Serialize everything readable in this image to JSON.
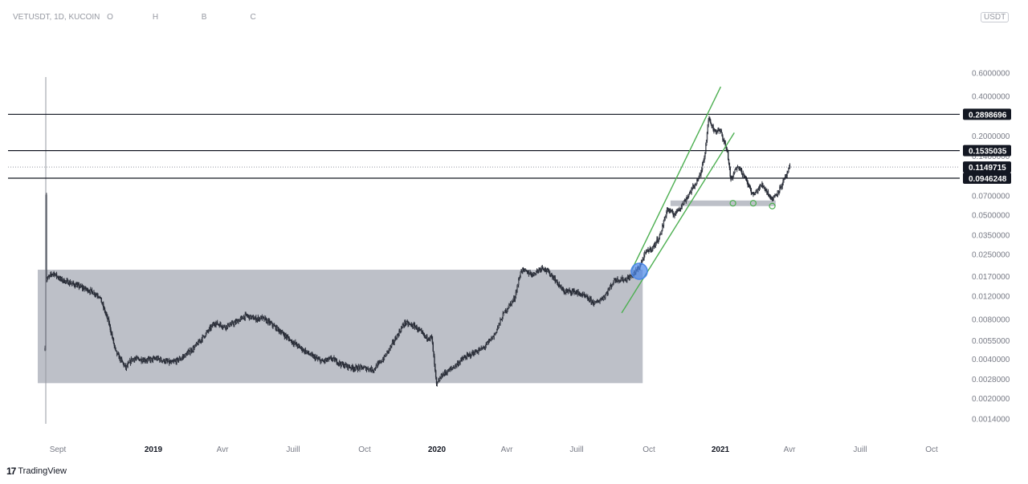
{
  "header": {
    "symbol": "VETUSDT, 1D, KUCOIN",
    "o_label": "O",
    "h_label": "H",
    "b_label": "B",
    "c_label": "C"
  },
  "unit_badge": "USDT",
  "brand": {
    "logo": "17",
    "name": "TradingView"
  },
  "chart_data": {
    "type": "candlestick",
    "scale": "log",
    "y_ticks": [
      "0.6000000",
      "0.4000000",
      "0.2000000",
      "0.1400000",
      "0.0700000",
      "0.0500000",
      "0.0350000",
      "0.0250000",
      "0.0170000",
      "0.0120000",
      "0.0080000",
      "0.0055000",
      "0.0040000",
      "0.0028000",
      "0.0020000",
      "0.0014000"
    ],
    "x_ticks": [
      "Sept",
      "2019",
      "Avr",
      "Juill",
      "Oct",
      "2020",
      "Avr",
      "Juill",
      "Oct",
      "2021",
      "Avr",
      "Juill",
      "Oct"
    ],
    "ylim": [
      0.0012,
      0.6
    ],
    "horizontal_levels": [
      {
        "value": 0.2898696,
        "label": "0.2898696"
      },
      {
        "value": 0.1535035,
        "label": "0.1535035"
      },
      {
        "value": 0.0946248,
        "label": "0.0946248"
      }
    ],
    "last_price": {
      "value": 0.1149715,
      "label": "0.1149715"
    },
    "range_box": {
      "start": "2018-08-14",
      "end": "2021-01-10",
      "low": 0.0026,
      "high": 0.019,
      "color": "#b2b5be"
    },
    "support_box": {
      "start": "2021-02-20",
      "end": "2021-07-25",
      "low": 0.058,
      "high": 0.064,
      "color": "#b2b5be"
    },
    "channel": {
      "color": "#4caf50",
      "upper": [
        {
          "t": "2020-12-25",
          "p": 0.019
        },
        {
          "t": "2021-05-05",
          "p": 0.47
        }
      ],
      "lower": [
        {
          "t": "2020-12-10",
          "p": 0.0089
        },
        {
          "t": "2021-05-25",
          "p": 0.21
        }
      ]
    },
    "marker": {
      "t": "2021-01-05",
      "p": 0.0185,
      "color": "#4a86e8"
    },
    "support_touches": [
      {
        "t": "2021-05-23",
        "p": 0.061
      },
      {
        "t": "2021-06-22",
        "p": 0.061
      },
      {
        "t": "2021-07-20",
        "p": 0.058
      }
    ],
    "series_anchors": [
      [
        "2018-08-13",
        0.0048
      ],
      [
        "2018-08-14",
        0.072
      ],
      [
        "2018-08-15",
        0.016
      ],
      [
        "2018-08-25",
        0.018
      ],
      [
        "2018-09-05",
        0.016
      ],
      [
        "2018-09-20",
        0.015
      ],
      [
        "2018-10-05",
        0.014
      ],
      [
        "2018-10-20",
        0.013
      ],
      [
        "2018-11-01",
        0.012
      ],
      [
        "2018-11-15",
        0.0075
      ],
      [
        "2018-11-25",
        0.0045
      ],
      [
        "2018-12-10",
        0.0034
      ],
      [
        "2018-12-20",
        0.004
      ],
      [
        "2019-01-10",
        0.0039
      ],
      [
        "2019-01-25",
        0.004
      ],
      [
        "2019-02-15",
        0.0037
      ],
      [
        "2019-03-01",
        0.004
      ],
      [
        "2019-03-20",
        0.0048
      ],
      [
        "2019-04-05",
        0.006
      ],
      [
        "2019-04-20",
        0.0075
      ],
      [
        "2019-05-05",
        0.007
      ],
      [
        "2019-05-20",
        0.0075
      ],
      [
        "2019-06-05",
        0.0085
      ],
      [
        "2019-06-20",
        0.008
      ],
      [
        "2019-06-28",
        0.0082
      ],
      [
        "2019-07-10",
        0.0075
      ],
      [
        "2019-07-25",
        0.0065
      ],
      [
        "2019-08-10",
        0.0055
      ],
      [
        "2019-08-25",
        0.0048
      ],
      [
        "2019-09-10",
        0.0042
      ],
      [
        "2019-09-25",
        0.0038
      ],
      [
        "2019-10-10",
        0.004
      ],
      [
        "2019-10-25",
        0.0036
      ],
      [
        "2019-11-10",
        0.0034
      ],
      [
        "2019-11-25",
        0.0034
      ],
      [
        "2019-12-10",
        0.0033
      ],
      [
        "2019-12-25",
        0.004
      ],
      [
        "2020-01-10",
        0.0055
      ],
      [
        "2020-01-25",
        0.0075
      ],
      [
        "2020-02-10",
        0.007
      ],
      [
        "2020-02-25",
        0.0058
      ],
      [
        "2020-03-05",
        0.0058
      ],
      [
        "2020-03-12",
        0.0025
      ],
      [
        "2020-03-20",
        0.003
      ],
      [
        "2020-04-05",
        0.0034
      ],
      [
        "2020-04-20",
        0.004
      ],
      [
        "2020-05-05",
        0.0044
      ],
      [
        "2020-05-20",
        0.0048
      ],
      [
        "2020-06-05",
        0.006
      ],
      [
        "2020-06-20",
        0.009
      ],
      [
        "2020-07-05",
        0.0115
      ],
      [
        "2020-07-15",
        0.019
      ],
      [
        "2020-08-01",
        0.0175
      ],
      [
        "2020-08-15",
        0.02
      ],
      [
        "2020-08-30",
        0.017
      ],
      [
        "2020-09-15",
        0.013
      ],
      [
        "2020-10-01",
        0.013
      ],
      [
        "2020-10-15",
        0.012
      ],
      [
        "2020-11-01",
        0.0105
      ],
      [
        "2020-11-15",
        0.012
      ],
      [
        "2020-11-30",
        0.016
      ],
      [
        "2020-12-15",
        0.016
      ],
      [
        "2020-12-25",
        0.017
      ],
      [
        "2021-01-05",
        0.02
      ],
      [
        "2021-01-15",
        0.026
      ],
      [
        "2021-01-25",
        0.028
      ],
      [
        "2021-02-05",
        0.035
      ],
      [
        "2021-02-15",
        0.055
      ],
      [
        "2021-02-25",
        0.05
      ],
      [
        "2021-03-10",
        0.06
      ],
      [
        "2021-03-25",
        0.08
      ],
      [
        "2021-04-05",
        0.1
      ],
      [
        "2021-04-12",
        0.15
      ],
      [
        "2021-04-17",
        0.27
      ],
      [
        "2021-04-25",
        0.22
      ],
      [
        "2021-05-05",
        0.215
      ],
      [
        "2021-05-15",
        0.15
      ],
      [
        "2021-05-20",
        0.09
      ],
      [
        "2021-05-30",
        0.12
      ],
      [
        "2021-06-10",
        0.095
      ],
      [
        "2021-06-22",
        0.07
      ],
      [
        "2021-07-05",
        0.085
      ],
      [
        "2021-07-20",
        0.065
      ],
      [
        "2021-08-01",
        0.08
      ],
      [
        "2021-08-10",
        0.1
      ],
      [
        "2021-08-15",
        0.115
      ]
    ]
  }
}
